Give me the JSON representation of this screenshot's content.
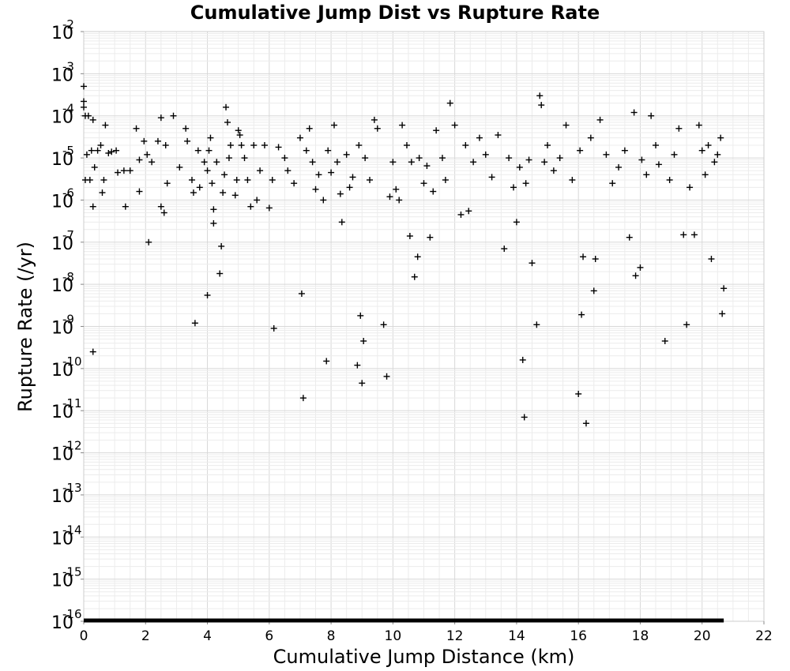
{
  "chart_data": {
    "type": "scatter",
    "title": "Cumulative Jump Dist vs Rupture Rate",
    "xlabel": "Cumulative Jump Distance (km)",
    "ylabel": "Rupture Rate (/yr)",
    "xlim": [
      0,
      22
    ],
    "ylim": [
      1e-16,
      0.01
    ],
    "y_scale": "log",
    "grid": true,
    "marker": "+",
    "marker_color": "#000000",
    "x_ticks": [
      0,
      2,
      4,
      6,
      8,
      10,
      12,
      14,
      16,
      18,
      20,
      22
    ],
    "y_tick_base": "10",
    "y_tick_exponents": [
      "-16",
      "-15",
      "-14",
      "-13",
      "-12",
      "-11",
      "-10",
      "-9",
      "-8",
      "-7",
      "-6",
      "-5",
      "-4",
      "-3",
      "-2"
    ],
    "floor_band": {
      "x_range": [
        0,
        20.7
      ],
      "y": 1e-16,
      "note": "many points at the axis floor"
    },
    "points": [
      [
        0.0,
        0.0005
      ],
      [
        0.0,
        0.00022
      ],
      [
        0.0,
        0.00016
      ],
      [
        0.05,
        0.0001
      ],
      [
        0.05,
        3e-06
      ],
      [
        0.1,
        1.2e-05
      ],
      [
        0.15,
        0.0001
      ],
      [
        0.2,
        3e-06
      ],
      [
        0.25,
        1.5e-05
      ],
      [
        0.3,
        8e-05
      ],
      [
        0.3,
        7e-07
      ],
      [
        0.3,
        2.5e-10
      ],
      [
        0.35,
        6e-06
      ],
      [
        0.45,
        1.5e-05
      ],
      [
        0.55,
        2e-05
      ],
      [
        0.6,
        1.5e-06
      ],
      [
        0.65,
        3e-06
      ],
      [
        0.7,
        6e-05
      ],
      [
        0.8,
        1.3e-05
      ],
      [
        0.9,
        1.4e-05
      ],
      [
        1.05,
        1.5e-05
      ],
      [
        1.1,
        4.5e-06
      ],
      [
        1.3,
        5e-06
      ],
      [
        1.35,
        7e-07
      ],
      [
        1.5,
        5e-06
      ],
      [
        1.7,
        5e-05
      ],
      [
        1.8,
        1.6e-06
      ],
      [
        1.8,
        9e-06
      ],
      [
        1.95,
        2.5e-05
      ],
      [
        2.05,
        1.2e-05
      ],
      [
        2.1,
        1e-07
      ],
      [
        2.2,
        8e-06
      ],
      [
        2.4,
        2.5e-05
      ],
      [
        2.5,
        9e-05
      ],
      [
        2.5,
        7e-07
      ],
      [
        2.6,
        5e-07
      ],
      [
        2.65,
        2e-05
      ],
      [
        2.7,
        2.5e-06
      ],
      [
        2.9,
        0.0001
      ],
      [
        3.1,
        6e-06
      ],
      [
        3.3,
        5e-05
      ],
      [
        3.35,
        2.5e-05
      ],
      [
        3.5,
        3e-06
      ],
      [
        3.55,
        1.5e-06
      ],
      [
        3.6,
        1.2e-09
      ],
      [
        3.7,
        1.5e-05
      ],
      [
        3.75,
        2e-06
      ],
      [
        3.9,
        8e-06
      ],
      [
        4.0,
        5e-06
      ],
      [
        4.0,
        5.5e-09
      ],
      [
        4.05,
        1.5e-05
      ],
      [
        4.1,
        3e-05
      ],
      [
        4.15,
        2.5e-06
      ],
      [
        4.2,
        6e-07
      ],
      [
        4.2,
        2.8e-07
      ],
      [
        4.3,
        8e-06
      ],
      [
        4.4,
        1.8e-08
      ],
      [
        4.45,
        8e-08
      ],
      [
        4.5,
        1.5e-06
      ],
      [
        4.55,
        4e-06
      ],
      [
        4.6,
        0.00016
      ],
      [
        4.65,
        7e-05
      ],
      [
        4.7,
        1e-05
      ],
      [
        4.75,
        2e-05
      ],
      [
        4.9,
        1.3e-06
      ],
      [
        4.95,
        3e-06
      ],
      [
        5.0,
        4.5e-05
      ],
      [
        5.05,
        3.5e-05
      ],
      [
        5.1,
        2e-05
      ],
      [
        5.2,
        1e-05
      ],
      [
        5.3,
        3e-06
      ],
      [
        5.4,
        7e-07
      ],
      [
        5.5,
        2e-05
      ],
      [
        5.6,
        1e-06
      ],
      [
        5.7,
        5e-06
      ],
      [
        5.85,
        2e-05
      ],
      [
        6.0,
        6.5e-07
      ],
      [
        6.1,
        3e-06
      ],
      [
        6.15,
        9e-10
      ],
      [
        6.3,
        1.8e-05
      ],
      [
        6.5,
        1e-05
      ],
      [
        6.6,
        5e-06
      ],
      [
        6.8,
        2.5e-06
      ],
      [
        7.0,
        3e-05
      ],
      [
        7.05,
        6e-09
      ],
      [
        7.1,
        2e-11
      ],
      [
        7.2,
        1.5e-05
      ],
      [
        7.3,
        5e-05
      ],
      [
        7.4,
        8e-06
      ],
      [
        7.5,
        1.8e-06
      ],
      [
        7.6,
        4e-06
      ],
      [
        7.75,
        1e-06
      ],
      [
        7.85,
        1.5e-10
      ],
      [
        7.9,
        1.5e-05
      ],
      [
        8.0,
        4.5e-06
      ],
      [
        8.1,
        6e-05
      ],
      [
        8.2,
        8e-06
      ],
      [
        8.3,
        1.4e-06
      ],
      [
        8.35,
        3e-07
      ],
      [
        8.5,
        1.2e-05
      ],
      [
        8.6,
        2e-06
      ],
      [
        8.7,
        3.5e-06
      ],
      [
        8.85,
        1.2e-10
      ],
      [
        8.9,
        2e-05
      ],
      [
        8.95,
        1.8e-09
      ],
      [
        9.0,
        4.5e-11
      ],
      [
        9.05,
        4.5e-10
      ],
      [
        9.1,
        1e-05
      ],
      [
        9.25,
        3e-06
      ],
      [
        9.4,
        8e-05
      ],
      [
        9.5,
        5e-05
      ],
      [
        9.7,
        1.1e-09
      ],
      [
        9.8,
        6.5e-11
      ],
      [
        9.9,
        1.2e-06
      ],
      [
        10.0,
        8e-06
      ],
      [
        10.1,
        1.8e-06
      ],
      [
        10.2,
        1e-06
      ],
      [
        10.3,
        6e-05
      ],
      [
        10.45,
        2e-05
      ],
      [
        10.55,
        1.4e-07
      ],
      [
        10.6,
        8e-06
      ],
      [
        10.7,
        1.5e-08
      ],
      [
        10.8,
        4.5e-08
      ],
      [
        10.85,
        1e-05
      ],
      [
        11.0,
        2.5e-06
      ],
      [
        11.1,
        6.5e-06
      ],
      [
        11.2,
        1.3e-07
      ],
      [
        11.3,
        1.6e-06
      ],
      [
        11.4,
        4.5e-05
      ],
      [
        11.6,
        1e-05
      ],
      [
        11.7,
        3e-06
      ],
      [
        11.85,
        0.0002
      ],
      [
        12.0,
        6e-05
      ],
      [
        12.2,
        4.5e-07
      ],
      [
        12.35,
        2e-05
      ],
      [
        12.45,
        5.5e-07
      ],
      [
        12.6,
        8e-06
      ],
      [
        12.8,
        3e-05
      ],
      [
        13.0,
        1.2e-05
      ],
      [
        13.2,
        3.5e-06
      ],
      [
        13.4,
        3.5e-05
      ],
      [
        13.6,
        7e-08
      ],
      [
        13.75,
        1e-05
      ],
      [
        13.9,
        2e-06
      ],
      [
        14.0,
        3e-07
      ],
      [
        14.1,
        6e-06
      ],
      [
        14.2,
        1.6e-10
      ],
      [
        14.25,
        7e-12
      ],
      [
        14.3,
        2.5e-06
      ],
      [
        14.4,
        9e-06
      ],
      [
        14.5,
        3.2e-08
      ],
      [
        14.65,
        1.1e-09
      ],
      [
        14.75,
        0.0003
      ],
      [
        14.8,
        0.00018
      ],
      [
        14.9,
        8e-06
      ],
      [
        15.0,
        2e-05
      ],
      [
        15.2,
        5e-06
      ],
      [
        15.4,
        1e-05
      ],
      [
        15.6,
        6e-05
      ],
      [
        15.8,
        3e-06
      ],
      [
        16.0,
        2.5e-11
      ],
      [
        16.05,
        1.5e-05
      ],
      [
        16.1,
        1.9e-09
      ],
      [
        16.15,
        4.5e-08
      ],
      [
        16.25,
        5e-12
      ],
      [
        16.4,
        3e-05
      ],
      [
        16.5,
        7e-09
      ],
      [
        16.55,
        4e-08
      ],
      [
        16.7,
        8e-05
      ],
      [
        16.9,
        1.2e-05
      ],
      [
        17.1,
        2.5e-06
      ],
      [
        17.3,
        6e-06
      ],
      [
        17.5,
        1.5e-05
      ],
      [
        17.65,
        1.3e-07
      ],
      [
        17.8,
        0.00012
      ],
      [
        17.85,
        1.6e-08
      ],
      [
        18.0,
        2.5e-08
      ],
      [
        18.05,
        9e-06
      ],
      [
        18.2,
        4e-06
      ],
      [
        18.35,
        0.0001
      ],
      [
        18.5,
        2e-05
      ],
      [
        18.6,
        7e-06
      ],
      [
        18.8,
        4.5e-10
      ],
      [
        18.95,
        3e-06
      ],
      [
        19.1,
        1.2e-05
      ],
      [
        19.25,
        5e-05
      ],
      [
        19.4,
        1.5e-07
      ],
      [
        19.5,
        1.1e-09
      ],
      [
        19.6,
        2e-06
      ],
      [
        19.75,
        1.5e-07
      ],
      [
        19.9,
        6e-05
      ],
      [
        20.0,
        1.5e-05
      ],
      [
        20.1,
        4e-06
      ],
      [
        20.2,
        2e-05
      ],
      [
        20.3,
        4e-08
      ],
      [
        20.4,
        8e-06
      ],
      [
        20.5,
        1.2e-05
      ],
      [
        20.6,
        3e-05
      ],
      [
        20.65,
        2e-09
      ],
      [
        20.7,
        8e-09
      ]
    ]
  }
}
